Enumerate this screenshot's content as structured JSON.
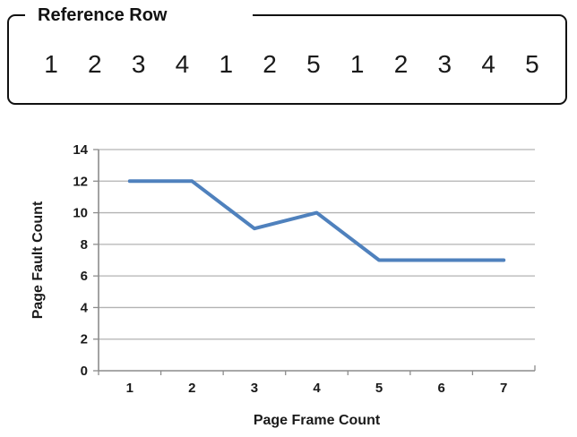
{
  "reference_box": {
    "legend": "Reference Row",
    "numbers": [
      "1",
      "2",
      "3",
      "4",
      "1",
      "2",
      "5",
      "1",
      "2",
      "3",
      "4",
      "5"
    ]
  },
  "chart_data": {
    "type": "line",
    "title": "",
    "xlabel": "Page Frame Count",
    "ylabel": "Page Fault Count",
    "categories": [
      1,
      2,
      3,
      4,
      5,
      6,
      7
    ],
    "series": [
      {
        "name": "Page Fault Count",
        "values": [
          12,
          12,
          9,
          10,
          7,
          7,
          7
        ]
      }
    ],
    "ylim": [
      0,
      14
    ],
    "ytick_step": 2,
    "ytick_labels": [
      "0",
      "2",
      "4",
      "6",
      "8",
      "10",
      "12",
      "14"
    ],
    "xtick_labels": [
      "1",
      "2",
      "3",
      "4",
      "5",
      "6",
      "7"
    ],
    "grid": "horizontal",
    "legend_position": "none",
    "line_color": "#4F81BD",
    "grid_color": "#B3B3B3",
    "axis_color": "#8C8C8C",
    "text_color": "#1a1a1a"
  }
}
